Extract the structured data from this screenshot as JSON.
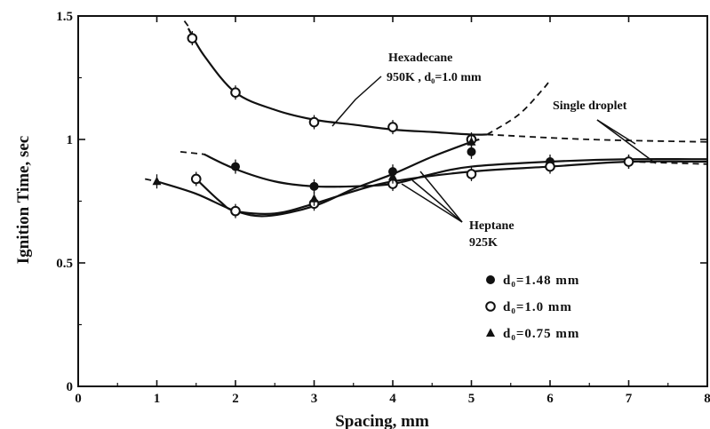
{
  "chart_data": {
    "type": "scatter",
    "xlabel": "Spacing, mm",
    "ylabel": "Ignition Time, sec",
    "xlim": [
      0,
      8
    ],
    "ylim": [
      0,
      1.5
    ],
    "x_ticks": [
      "0",
      "1",
      "2",
      "3",
      "4",
      "5",
      "6",
      "7",
      "8"
    ],
    "y_ticks": [
      "0",
      "0.5",
      "1",
      "1.5"
    ],
    "grid": false,
    "legend_position": "bottom-right",
    "legend": [
      {
        "marker": "filled-circle",
        "label": "d₀=1.48  mm"
      },
      {
        "marker": "open-circle",
        "label": "d₀=1.0  mm"
      },
      {
        "marker": "filled-triangle",
        "label": "d₀=0.75  mm"
      }
    ],
    "annotations": {
      "hexadecane_line1": "Hexadecane",
      "hexadecane_line2": "950K ,  d₀=1.0  mm",
      "single_droplet": "Single droplet",
      "heptane_line1": "Heptane",
      "heptane_line2": "925K"
    },
    "series": [
      {
        "group": "Hexadecane 950K",
        "marker": "open-circle",
        "points": [
          [
            1.45,
            1.41
          ],
          [
            2.0,
            1.19
          ],
          [
            3.0,
            1.07
          ],
          [
            4.0,
            1.05
          ],
          [
            5.0,
            1.0
          ]
        ],
        "fit": [
          [
            1.4,
            1.45
          ],
          [
            1.6,
            1.34
          ],
          [
            2.0,
            1.19
          ],
          [
            2.5,
            1.12
          ],
          [
            3.0,
            1.08
          ],
          [
            3.5,
            1.06
          ],
          [
            4.0,
            1.04
          ],
          [
            4.5,
            1.03
          ],
          [
            5.0,
            1.02
          ],
          [
            5.2,
            1.02
          ]
        ],
        "single_droplet": 1.0
      },
      {
        "group": "Heptane 925K",
        "marker": "filled-circle",
        "points": [
          [
            2.0,
            0.89
          ],
          [
            3.0,
            0.81
          ],
          [
            4.0,
            0.87
          ],
          [
            5.0,
            0.95
          ],
          [
            6.0,
            0.91
          ],
          [
            7.0,
            0.91
          ]
        ],
        "fit": [
          [
            1.6,
            0.94
          ],
          [
            2.0,
            0.88
          ],
          [
            2.5,
            0.83
          ],
          [
            3.0,
            0.81
          ],
          [
            3.5,
            0.81
          ],
          [
            4.0,
            0.82
          ],
          [
            4.5,
            0.86
          ],
          [
            5.0,
            0.89
          ],
          [
            6.0,
            0.91
          ],
          [
            7.0,
            0.92
          ],
          [
            8.0,
            0.92
          ]
        ],
        "single_droplet": 0.92
      },
      {
        "group": "Heptane 925K",
        "marker": "open-circle",
        "points": [
          [
            1.5,
            0.84
          ],
          [
            2.0,
            0.71
          ],
          [
            3.0,
            0.74
          ],
          [
            4.0,
            0.82
          ],
          [
            5.0,
            0.86
          ],
          [
            6.0,
            0.89
          ],
          [
            7.0,
            0.91
          ]
        ],
        "fit": [
          [
            1.5,
            0.84
          ],
          [
            1.8,
            0.75
          ],
          [
            2.0,
            0.71
          ],
          [
            2.5,
            0.7
          ],
          [
            3.0,
            0.74
          ],
          [
            3.5,
            0.79
          ],
          [
            4.0,
            0.83
          ],
          [
            5.0,
            0.87
          ],
          [
            6.0,
            0.89
          ],
          [
            7.0,
            0.91
          ],
          [
            8.0,
            0.91
          ]
        ],
        "single_droplet": 0.9
      },
      {
        "group": "Heptane 925K",
        "marker": "filled-triangle",
        "points": [
          [
            1.0,
            0.83
          ],
          [
            3.0,
            0.76
          ],
          [
            4.0,
            0.85
          ],
          [
            5.0,
            0.99
          ]
        ],
        "fit": [
          [
            1.0,
            0.83
          ],
          [
            1.5,
            0.78
          ],
          [
            2.0,
            0.71
          ],
          [
            2.4,
            0.69
          ],
          [
            3.0,
            0.73
          ],
          [
            3.5,
            0.8
          ],
          [
            4.0,
            0.86
          ],
          [
            4.5,
            0.93
          ],
          [
            5.0,
            0.99
          ],
          [
            5.1,
            1.0
          ]
        ],
        "single_droplet": 0.98
      }
    ]
  }
}
